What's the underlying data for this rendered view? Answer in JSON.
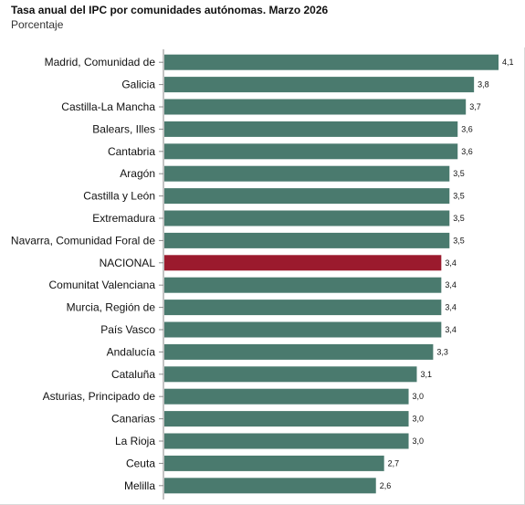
{
  "title": "Tasa anual del IPC por comunidades autónomas. Marzo 2026",
  "subtitle": "Porcentaje",
  "colors": {
    "bar": "#4a7a6e",
    "highlight": "#9b1a2d",
    "axis": "#888888"
  },
  "chart_data": {
    "type": "bar",
    "orientation": "horizontal",
    "title": "Tasa anual del IPC por comunidades autónomas. Marzo 2026",
    "subtitle": "Porcentaje",
    "xlim": [
      0,
      4.2
    ],
    "grid": false,
    "categories": [
      "Madrid, Comunidad de",
      "Galicia",
      "Castilla-La Mancha",
      "Balears, Illes",
      "Cantabria",
      "Aragón",
      "Castilla y León",
      "Extremadura",
      "Navarra, Comunidad Foral de",
      "NACIONAL",
      "Comunitat Valenciana",
      "Murcia, Región de",
      "País Vasco",
      "Andalucía",
      "Cataluña",
      "Asturias, Principado de",
      "Canarias",
      "La Rioja",
      "Ceuta",
      "Melilla"
    ],
    "values": [
      4.1,
      3.8,
      3.7,
      3.6,
      3.6,
      3.5,
      3.5,
      3.5,
      3.5,
      3.4,
      3.4,
      3.4,
      3.4,
      3.3,
      3.1,
      3.0,
      3.0,
      3.0,
      2.7,
      2.6
    ],
    "value_labels": [
      "4,1",
      "3,8",
      "3,7",
      "3,6",
      "3,6",
      "3,5",
      "3,5",
      "3,5",
      "3,5",
      "3,4",
      "3,4",
      "3,4",
      "3,4",
      "3,3",
      "3,1",
      "3,0",
      "3,0",
      "3,0",
      "2,7",
      "2,6"
    ],
    "highlight": "NACIONAL"
  }
}
